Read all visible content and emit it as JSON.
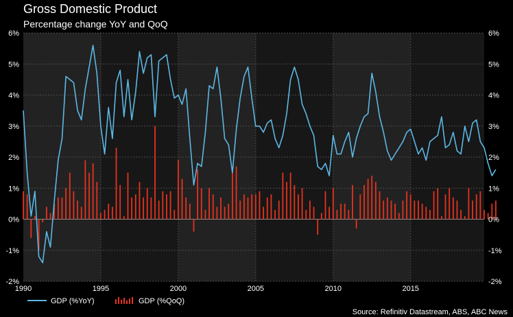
{
  "chart_data": {
    "type": "line+bar",
    "title": "Gross Domestic Product",
    "subtitle": "Percentage change YoY and QoQ",
    "source": "Source: Refinitiv Datastream, ABS, ABC News",
    "x_ticks": [
      "1990",
      "1995",
      "2000",
      "2005",
      "2010",
      "2015"
    ],
    "y_ticks": [
      "-2%",
      "-1%",
      "0%",
      "1%",
      "2%",
      "3%",
      "4%",
      "5%",
      "6%"
    ],
    "xlim": [
      1990,
      2019.75
    ],
    "ylim": [
      -2,
      6
    ],
    "grid": true,
    "legend_position": "bottom-left",
    "colors": {
      "line": "#5cb8e6",
      "bar": "#e8321e",
      "bg_light": "#222222",
      "bg_dark": "#171717"
    },
    "series": [
      {
        "name": "GDP (%YoY)",
        "type": "line",
        "x_start": 1990.0,
        "x_step": 0.25,
        "values": [
          3.5,
          1.5,
          0.1,
          0.9,
          -1.2,
          -1.4,
          -0.4,
          -0.9,
          0.6,
          1.9,
          2.6,
          4.6,
          4.5,
          4.4,
          3.5,
          3.2,
          4.2,
          4.9,
          5.6,
          4.7,
          3.0,
          2.1,
          3.6,
          2.6,
          4.4,
          4.8,
          3.3,
          4.5,
          3.2,
          4.1,
          5.4,
          4.7,
          5.2,
          5.3,
          3.3,
          5.1,
          5.2,
          5.3,
          4.5,
          3.9,
          4.0,
          3.7,
          4.2,
          2.6,
          1.1,
          1.8,
          1.7,
          2.8,
          4.3,
          4.2,
          4.9,
          3.9,
          2.6,
          2.4,
          1.5,
          2.9,
          3.9,
          4.6,
          4.9,
          3.9,
          3.0,
          3.0,
          2.8,
          3.1,
          3.2,
          2.6,
          2.3,
          2.7,
          3.4,
          4.5,
          4.9,
          4.5,
          3.7,
          3.4,
          3.0,
          2.7,
          1.7,
          1.6,
          1.8,
          1.4,
          2.7,
          2.1,
          2.1,
          2.5,
          2.8,
          2.0,
          2.6,
          3.0,
          3.3,
          3.4,
          4.7,
          4.1,
          3.3,
          2.8,
          2.2,
          1.9,
          2.1,
          2.3,
          2.5,
          2.8,
          2.9,
          2.5,
          2.1,
          2.3,
          1.9,
          2.5,
          2.6,
          2.7,
          3.3,
          2.3,
          2.4,
          2.8,
          2.2,
          2.1,
          3.0,
          2.5,
          3.1,
          3.2,
          2.5,
          2.3,
          1.8,
          1.4,
          1.6
        ],
        "legend_label": "GDP (%YoY)"
      },
      {
        "name": "GDP (%QoQ)",
        "type": "bar",
        "x_start": 1990.0,
        "x_step": 0.25,
        "values": [
          0.9,
          0.8,
          -0.6,
          0.1,
          -1.0,
          -0.1,
          0.4,
          0.2,
          0.5,
          0.7,
          0.7,
          1.0,
          1.5,
          0.9,
          0.6,
          0.4,
          1.9,
          1.5,
          1.8,
          1.2,
          0.2,
          0.3,
          0.5,
          0.4,
          2.3,
          1.1,
          0.1,
          1.5,
          0.7,
          0.8,
          1.2,
          0.7,
          1.0,
          0.7,
          3.0,
          0.6,
          0.9,
          0.8,
          0.9,
          0.3,
          1.9,
          1.3,
          0.7,
          0.5,
          -0.4,
          1.6,
          1.0,
          0.3,
          1.0,
          0.8,
          0.4,
          0.7,
          0.4,
          0.5,
          1.5,
          1.7,
          0.6,
          0.8,
          0.7,
          0.8,
          0.8,
          0.9,
          0.4,
          0.7,
          0.8,
          0.3,
          0.6,
          1.5,
          1.2,
          1.5,
          1.1,
          0.8,
          1.0,
          0.3,
          0.6,
          0.4,
          -0.5,
          0.2,
          0.9,
          0.4,
          1.0,
          0.3,
          0.5,
          0.5,
          0.3,
          1.1,
          -0.3,
          0.8,
          1.1,
          1.3,
          1.4,
          1.2,
          0.9,
          0.6,
          0.7,
          0.6,
          0.5,
          0.2,
          0.6,
          0.9,
          0.8,
          0.6,
          0.6,
          0.5,
          0.4,
          0.3,
          0.9,
          1.0,
          0.1,
          0.8,
          1.0,
          0.7,
          0.6,
          0.3,
          0.1,
          1.0,
          0.6,
          0.8,
          0.9,
          0.3,
          0.2,
          0.5,
          0.6
        ],
        "legend_label": "GDP (%QoQ)"
      }
    ]
  }
}
